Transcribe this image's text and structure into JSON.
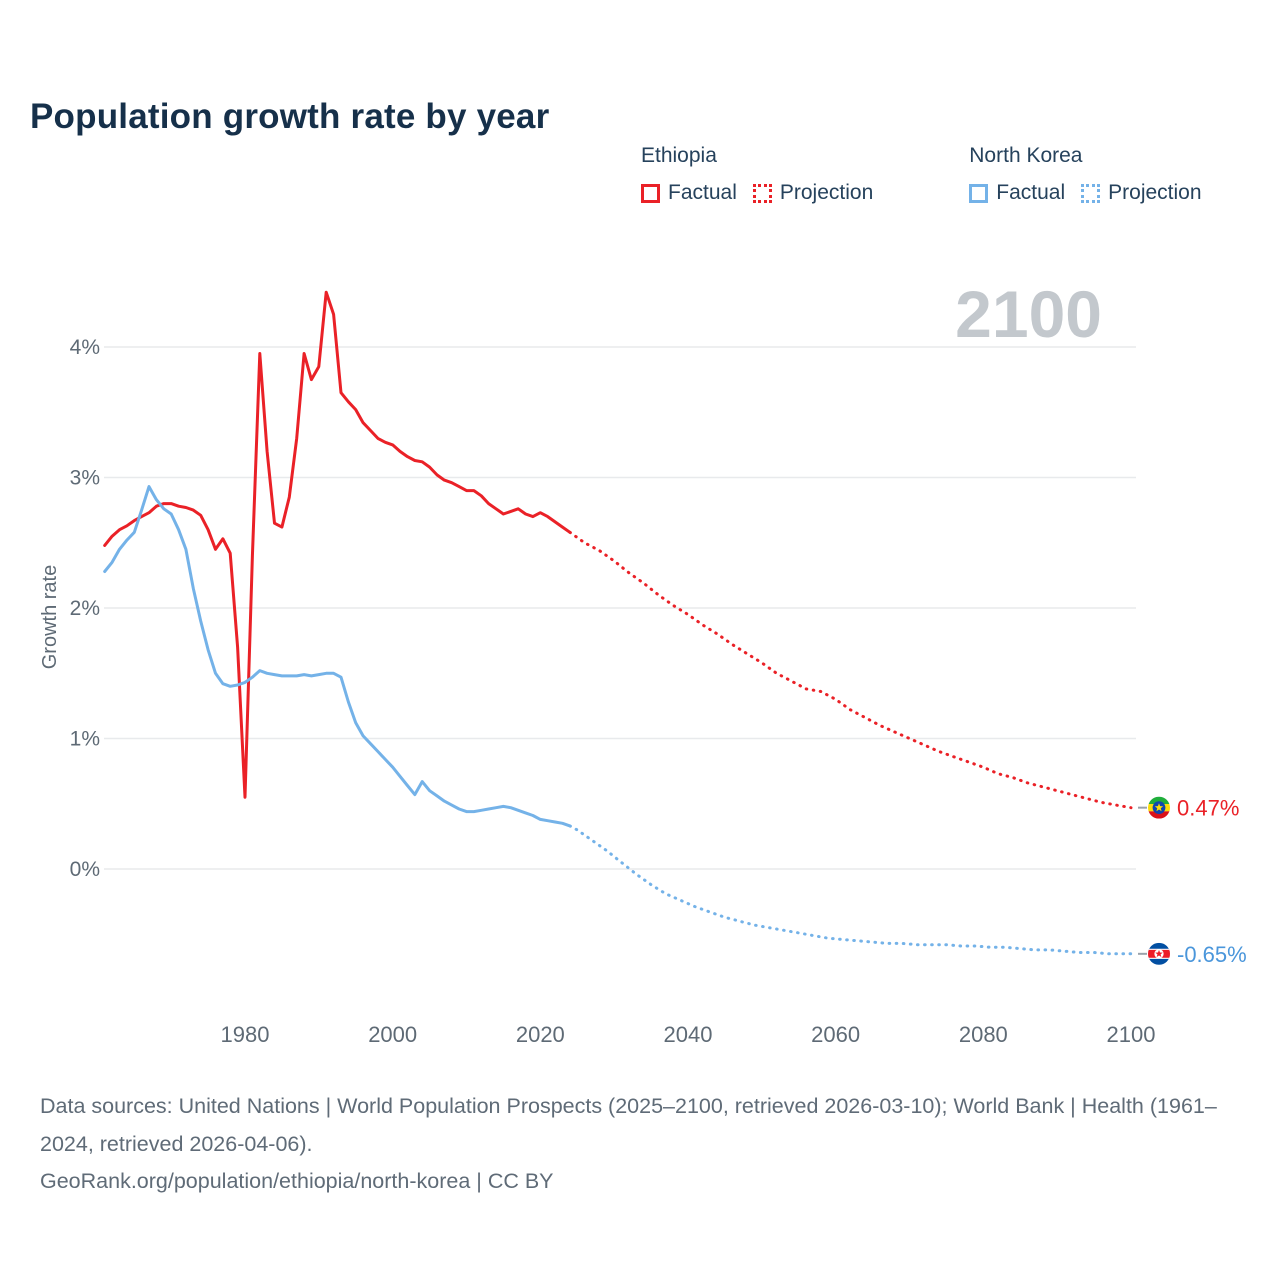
{
  "title": "Population growth rate by year",
  "watermark": "2100",
  "legend": {
    "groups": [
      {
        "name": "Ethiopia",
        "color": "#ea2127",
        "items": [
          {
            "label": "Factual",
            "style": "solid"
          },
          {
            "label": "Projection",
            "style": "dotted"
          }
        ]
      },
      {
        "name": "North Korea",
        "color": "#74b2e8",
        "items": [
          {
            "label": "Factual",
            "style": "solid"
          },
          {
            "label": "Projection",
            "style": "dotted"
          }
        ]
      }
    ]
  },
  "footer": {
    "sources": "Data sources: United Nations | World Population Prospects (2025–2100, retrieved 2026-03-10); World Bank | Health (1961–2024, retrieved 2026-04-06).",
    "attribution": "GeoRank.org/population/ethiopia/north-korea | CC BY"
  },
  "chart_data": {
    "type": "line",
    "title": "Population growth rate by year",
    "xlabel": "",
    "ylabel": "Growth rate",
    "x_ticks": [
      1980,
      2000,
      2020,
      2040,
      2060,
      2080,
      2100
    ],
    "y_ticks": [
      0,
      1,
      2,
      3,
      4
    ],
    "y_tick_suffix": "%",
    "xlim": [
      1961,
      2100
    ],
    "ylim": [
      -1,
      4.6
    ],
    "grid": true,
    "legend_position": "top-right",
    "series": [
      {
        "name": "Ethiopia Factual",
        "color": "#ea2127",
        "style": "solid",
        "points": [
          [
            1961,
            2.48
          ],
          [
            1962,
            2.55
          ],
          [
            1963,
            2.6
          ],
          [
            1964,
            2.63
          ],
          [
            1965,
            2.67
          ],
          [
            1966,
            2.7
          ],
          [
            1967,
            2.73
          ],
          [
            1968,
            2.78
          ],
          [
            1969,
            2.8
          ],
          [
            1970,
            2.8
          ],
          [
            1971,
            2.78
          ],
          [
            1972,
            2.77
          ],
          [
            1973,
            2.75
          ],
          [
            1974,
            2.71
          ],
          [
            1975,
            2.6
          ],
          [
            1976,
            2.45
          ],
          [
            1977,
            2.53
          ],
          [
            1978,
            2.42
          ],
          [
            1979,
            1.7
          ],
          [
            1980,
            0.55
          ],
          [
            1981,
            2.4
          ],
          [
            1982,
            3.95
          ],
          [
            1983,
            3.2
          ],
          [
            1984,
            2.65
          ],
          [
            1985,
            2.62
          ],
          [
            1986,
            2.85
          ],
          [
            1987,
            3.3
          ],
          [
            1988,
            3.95
          ],
          [
            1989,
            3.75
          ],
          [
            1990,
            3.85
          ],
          [
            1991,
            4.42
          ],
          [
            1992,
            4.25
          ],
          [
            1993,
            3.65
          ],
          [
            1994,
            3.58
          ],
          [
            1995,
            3.52
          ],
          [
            1996,
            3.42
          ],
          [
            1997,
            3.36
          ],
          [
            1998,
            3.3
          ],
          [
            1999,
            3.27
          ],
          [
            2000,
            3.25
          ],
          [
            2001,
            3.2
          ],
          [
            2002,
            3.16
          ],
          [
            2003,
            3.13
          ],
          [
            2004,
            3.12
          ],
          [
            2005,
            3.08
          ],
          [
            2006,
            3.02
          ],
          [
            2007,
            2.98
          ],
          [
            2008,
            2.96
          ],
          [
            2009,
            2.93
          ],
          [
            2010,
            2.9
          ],
          [
            2011,
            2.9
          ],
          [
            2012,
            2.86
          ],
          [
            2013,
            2.8
          ],
          [
            2014,
            2.76
          ],
          [
            2015,
            2.72
          ],
          [
            2016,
            2.74
          ],
          [
            2017,
            2.76
          ],
          [
            2018,
            2.72
          ],
          [
            2019,
            2.7
          ],
          [
            2020,
            2.73
          ],
          [
            2021,
            2.7
          ],
          [
            2022,
            2.66
          ],
          [
            2023,
            2.62
          ],
          [
            2024,
            2.58
          ]
        ]
      },
      {
        "name": "Ethiopia Projection",
        "color": "#ea2127",
        "style": "dotted",
        "points": [
          [
            2024,
            2.58
          ],
          [
            2025,
            2.54
          ],
          [
            2026,
            2.5
          ],
          [
            2028,
            2.44
          ],
          [
            2030,
            2.36
          ],
          [
            2032,
            2.27
          ],
          [
            2034,
            2.19
          ],
          [
            2036,
            2.1
          ],
          [
            2038,
            2.02
          ],
          [
            2040,
            1.95
          ],
          [
            2042,
            1.87
          ],
          [
            2044,
            1.8
          ],
          [
            2046,
            1.72
          ],
          [
            2048,
            1.65
          ],
          [
            2050,
            1.58
          ],
          [
            2052,
            1.5
          ],
          [
            2054,
            1.44
          ],
          [
            2056,
            1.38
          ],
          [
            2058,
            1.36
          ],
          [
            2060,
            1.3
          ],
          [
            2062,
            1.22
          ],
          [
            2064,
            1.16
          ],
          [
            2066,
            1.1
          ],
          [
            2068,
            1.05
          ],
          [
            2070,
            1.0
          ],
          [
            2072,
            0.95
          ],
          [
            2074,
            0.9
          ],
          [
            2076,
            0.86
          ],
          [
            2078,
            0.82
          ],
          [
            2080,
            0.78
          ],
          [
            2082,
            0.73
          ],
          [
            2084,
            0.7
          ],
          [
            2086,
            0.66
          ],
          [
            2088,
            0.63
          ],
          [
            2090,
            0.6
          ],
          [
            2092,
            0.57
          ],
          [
            2094,
            0.54
          ],
          [
            2096,
            0.51
          ],
          [
            2098,
            0.49
          ],
          [
            2100,
            0.47
          ]
        ]
      },
      {
        "name": "North Korea Factual",
        "color": "#74b2e8",
        "style": "solid",
        "points": [
          [
            1961,
            2.28
          ],
          [
            1962,
            2.35
          ],
          [
            1963,
            2.45
          ],
          [
            1964,
            2.52
          ],
          [
            1965,
            2.58
          ],
          [
            1966,
            2.75
          ],
          [
            1967,
            2.93
          ],
          [
            1968,
            2.83
          ],
          [
            1969,
            2.76
          ],
          [
            1970,
            2.72
          ],
          [
            1971,
            2.6
          ],
          [
            1972,
            2.45
          ],
          [
            1973,
            2.15
          ],
          [
            1974,
            1.9
          ],
          [
            1975,
            1.68
          ],
          [
            1976,
            1.5
          ],
          [
            1977,
            1.42
          ],
          [
            1978,
            1.4
          ],
          [
            1979,
            1.41
          ],
          [
            1980,
            1.43
          ],
          [
            1981,
            1.47
          ],
          [
            1982,
            1.52
          ],
          [
            1983,
            1.5
          ],
          [
            1984,
            1.49
          ],
          [
            1985,
            1.48
          ],
          [
            1986,
            1.48
          ],
          [
            1987,
            1.48
          ],
          [
            1988,
            1.49
          ],
          [
            1989,
            1.48
          ],
          [
            1990,
            1.49
          ],
          [
            1991,
            1.5
          ],
          [
            1992,
            1.5
          ],
          [
            1993,
            1.47
          ],
          [
            1994,
            1.28
          ],
          [
            1995,
            1.12
          ],
          [
            1996,
            1.02
          ],
          [
            1997,
            0.96
          ],
          [
            1998,
            0.9
          ],
          [
            1999,
            0.84
          ],
          [
            2000,
            0.78
          ],
          [
            2001,
            0.71
          ],
          [
            2002,
            0.64
          ],
          [
            2003,
            0.57
          ],
          [
            2004,
            0.67
          ],
          [
            2005,
            0.6
          ],
          [
            2006,
            0.56
          ],
          [
            2007,
            0.52
          ],
          [
            2008,
            0.49
          ],
          [
            2009,
            0.46
          ],
          [
            2010,
            0.44
          ],
          [
            2011,
            0.44
          ],
          [
            2012,
            0.45
          ],
          [
            2013,
            0.46
          ],
          [
            2014,
            0.47
          ],
          [
            2015,
            0.48
          ],
          [
            2016,
            0.47
          ],
          [
            2017,
            0.45
          ],
          [
            2018,
            0.43
          ],
          [
            2019,
            0.41
          ],
          [
            2020,
            0.38
          ],
          [
            2021,
            0.37
          ],
          [
            2022,
            0.36
          ],
          [
            2023,
            0.35
          ],
          [
            2024,
            0.33
          ]
        ]
      },
      {
        "name": "North Korea Projection",
        "color": "#74b2e8",
        "style": "dotted",
        "points": [
          [
            2024,
            0.33
          ],
          [
            2025,
            0.3
          ],
          [
            2027,
            0.22
          ],
          [
            2029,
            0.14
          ],
          [
            2031,
            0.05
          ],
          [
            2033,
            -0.04
          ],
          [
            2035,
            -0.12
          ],
          [
            2037,
            -0.19
          ],
          [
            2039,
            -0.24
          ],
          [
            2041,
            -0.29
          ],
          [
            2043,
            -0.33
          ],
          [
            2045,
            -0.37
          ],
          [
            2047,
            -0.4
          ],
          [
            2049,
            -0.43
          ],
          [
            2051,
            -0.45
          ],
          [
            2053,
            -0.47
          ],
          [
            2055,
            -0.49
          ],
          [
            2057,
            -0.51
          ],
          [
            2059,
            -0.53
          ],
          [
            2061,
            -0.54
          ],
          [
            2063,
            -0.55
          ],
          [
            2065,
            -0.56
          ],
          [
            2067,
            -0.57
          ],
          [
            2069,
            -0.57
          ],
          [
            2071,
            -0.58
          ],
          [
            2073,
            -0.58
          ],
          [
            2075,
            -0.58
          ],
          [
            2077,
            -0.59
          ],
          [
            2079,
            -0.59
          ],
          [
            2081,
            -0.6
          ],
          [
            2083,
            -0.6
          ],
          [
            2085,
            -0.61
          ],
          [
            2087,
            -0.62
          ],
          [
            2089,
            -0.62
          ],
          [
            2091,
            -0.63
          ],
          [
            2093,
            -0.64
          ],
          [
            2095,
            -0.64
          ],
          [
            2097,
            -0.65
          ],
          [
            2100,
            -0.65
          ]
        ]
      }
    ],
    "end_labels": [
      {
        "text": "0.47%",
        "value": 0.47,
        "color": "#ea2127",
        "flag": "ethiopia",
        "country": "Ethiopia"
      },
      {
        "text": "-0.65%",
        "value": -0.65,
        "color": "#4a96db",
        "flag": "north-korea",
        "country": "North Korea"
      }
    ]
  }
}
